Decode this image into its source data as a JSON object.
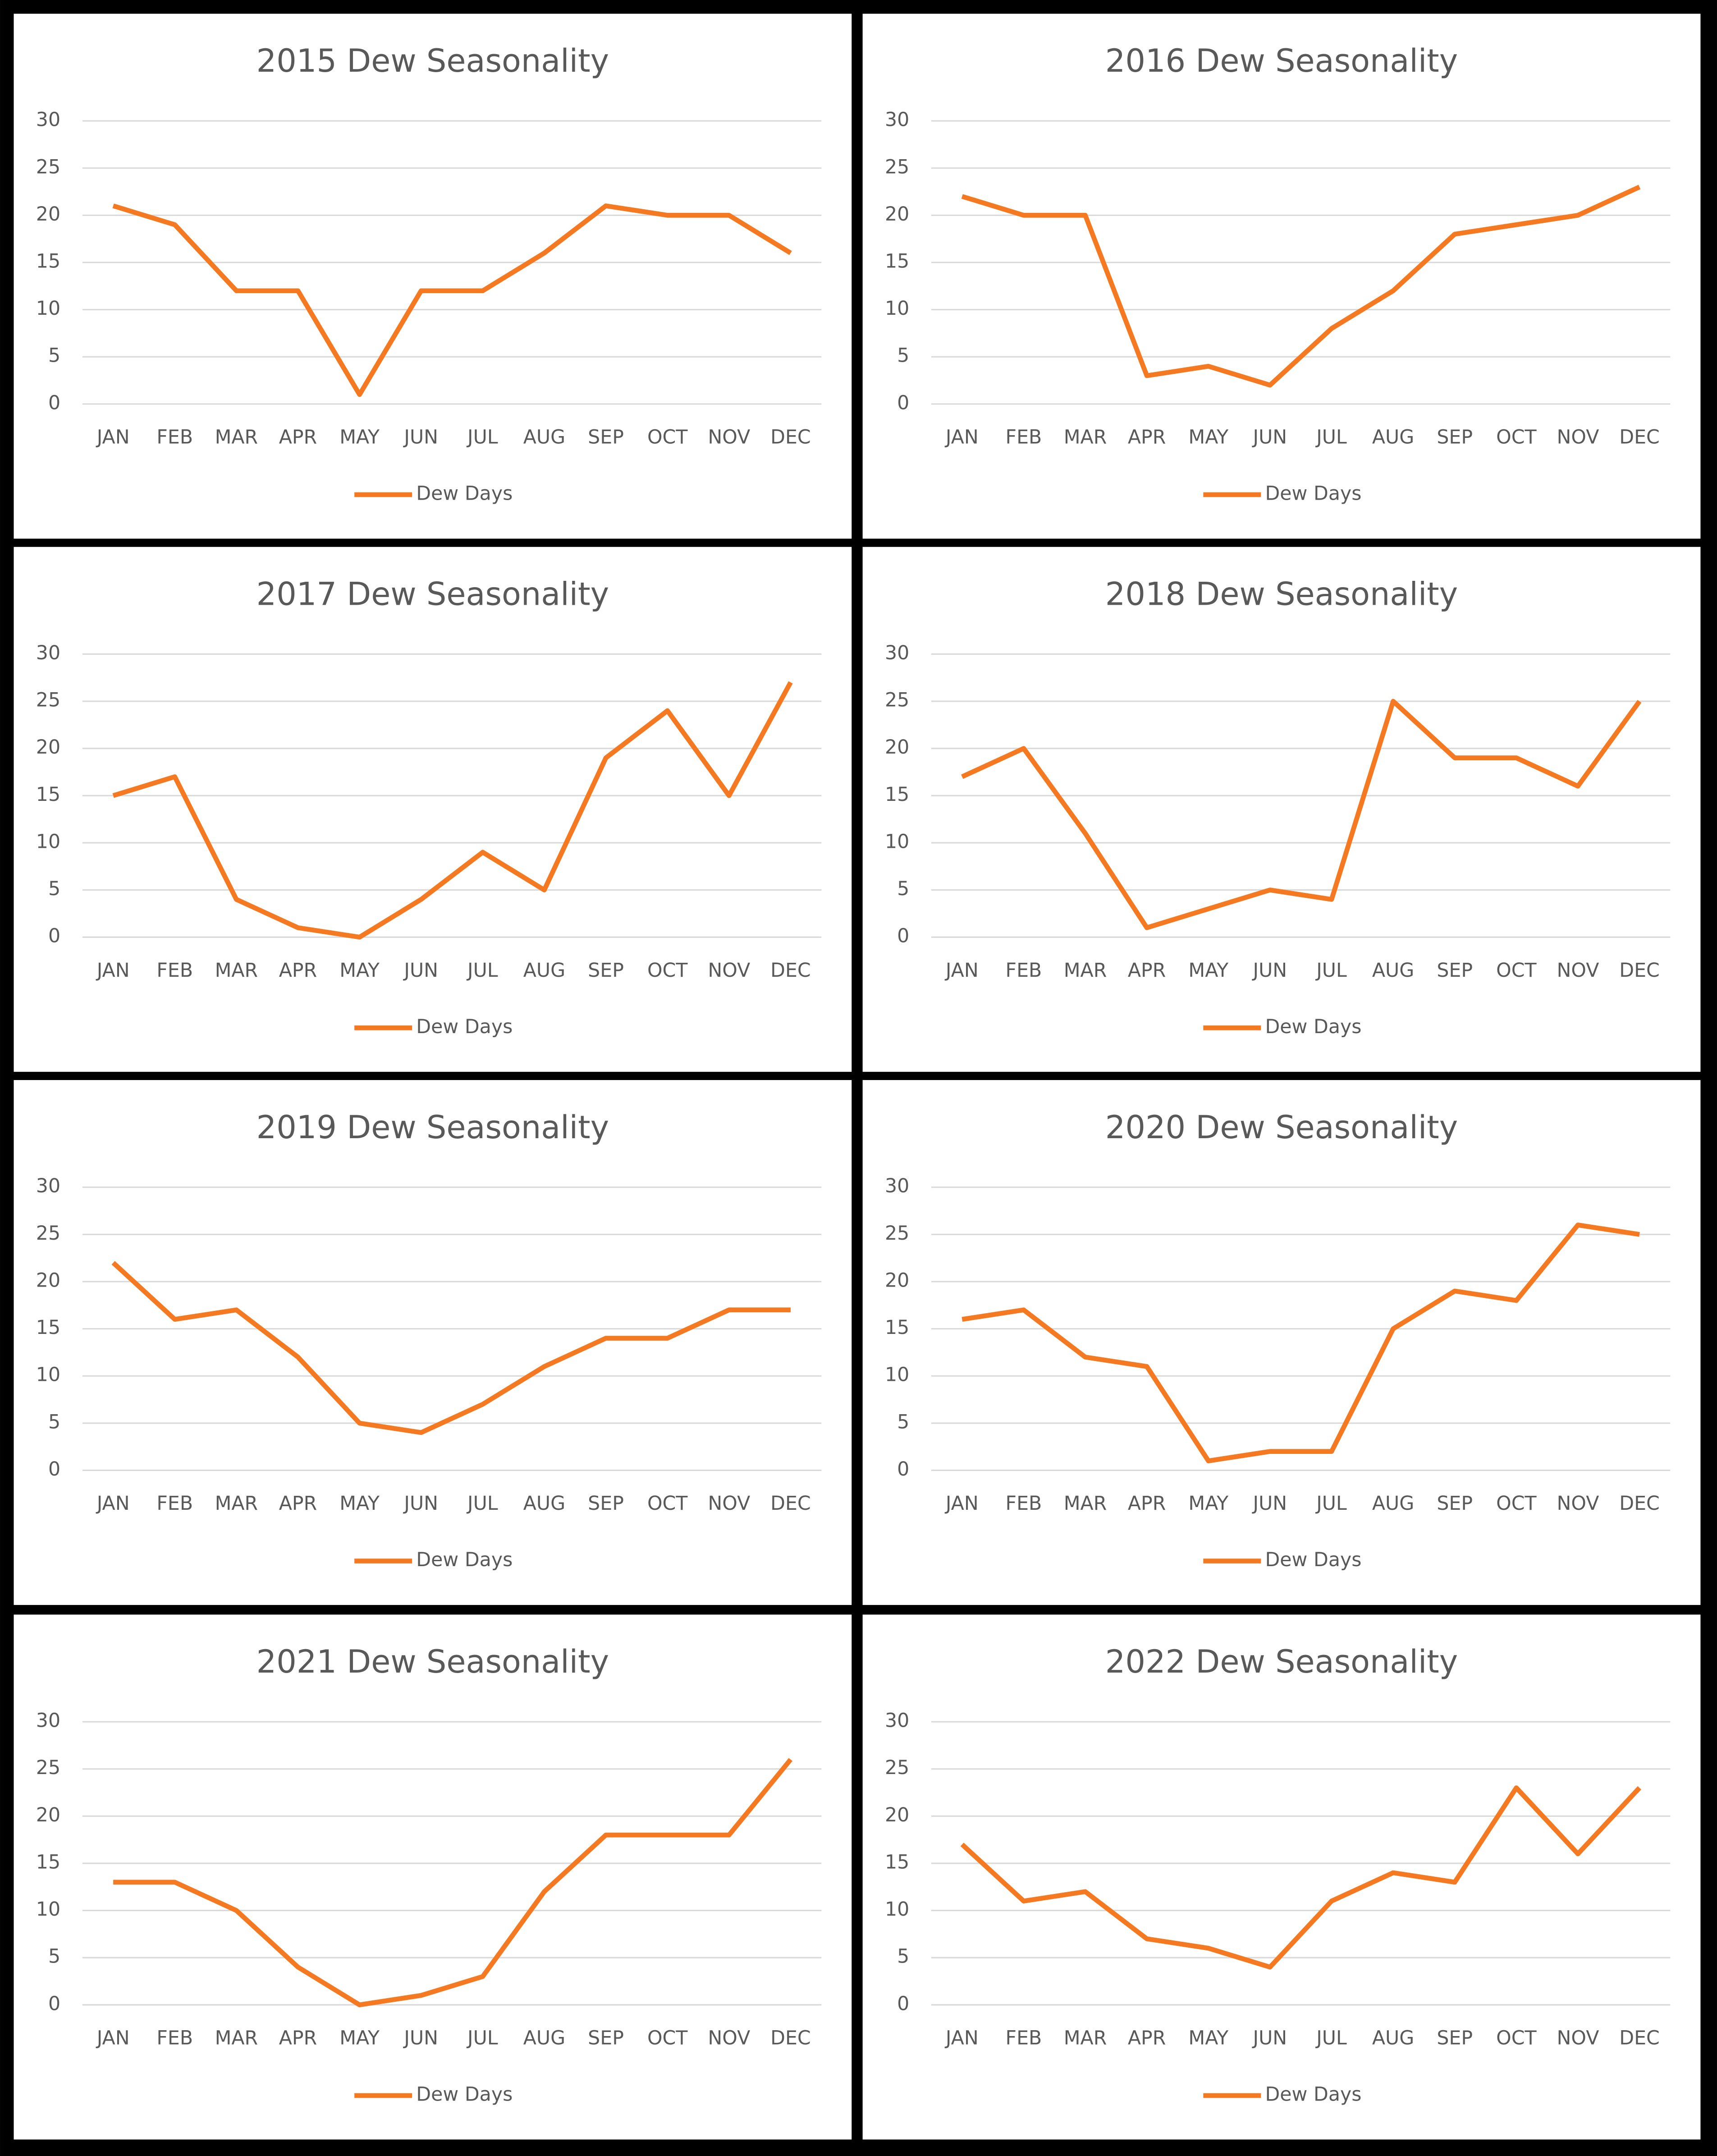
{
  "chart_data": [
    {
      "type": "line",
      "title": "2015 Dew Seasonality",
      "categories": [
        "JAN",
        "FEB",
        "MAR",
        "APR",
        "MAY",
        "JUN",
        "JUL",
        "AUG",
        "SEP",
        "OCT",
        "NOV",
        "DEC"
      ],
      "series": [
        {
          "name": "Dew Days",
          "color": "#f47920",
          "values": [
            21,
            19,
            12,
            12,
            1,
            12,
            12,
            16,
            21,
            20,
            20,
            16
          ]
        }
      ],
      "ylim": [
        0,
        30
      ],
      "yticks": [
        0,
        5,
        10,
        15,
        20,
        25,
        30
      ],
      "grid": true,
      "legend": "bottom"
    },
    {
      "type": "line",
      "title": "2016 Dew Seasonality",
      "categories": [
        "JAN",
        "FEB",
        "MAR",
        "APR",
        "MAY",
        "JUN",
        "JUL",
        "AUG",
        "SEP",
        "OCT",
        "NOV",
        "DEC"
      ],
      "series": [
        {
          "name": "Dew Days",
          "color": "#f47920",
          "values": [
            22,
            20,
            20,
            3,
            4,
            2,
            8,
            12,
            18,
            19,
            20,
            23
          ]
        }
      ],
      "ylim": [
        0,
        30
      ],
      "yticks": [
        0,
        5,
        10,
        15,
        20,
        25,
        30
      ],
      "grid": true,
      "legend": "bottom"
    },
    {
      "type": "line",
      "title": "2017 Dew Seasonality",
      "categories": [
        "JAN",
        "FEB",
        "MAR",
        "APR",
        "MAY",
        "JUN",
        "JUL",
        "AUG",
        "SEP",
        "OCT",
        "NOV",
        "DEC"
      ],
      "series": [
        {
          "name": "Dew Days",
          "color": "#f47920",
          "values": [
            15,
            17,
            4,
            1,
            0,
            4,
            9,
            5,
            19,
            24,
            15,
            27
          ]
        }
      ],
      "ylim": [
        0,
        30
      ],
      "yticks": [
        0,
        5,
        10,
        15,
        20,
        25,
        30
      ],
      "grid": true,
      "legend": "bottom"
    },
    {
      "type": "line",
      "title": "2018 Dew Seasonality",
      "categories": [
        "JAN",
        "FEB",
        "MAR",
        "APR",
        "MAY",
        "JUN",
        "JUL",
        "AUG",
        "SEP",
        "OCT",
        "NOV",
        "DEC"
      ],
      "series": [
        {
          "name": "Dew Days",
          "color": "#f47920",
          "values": [
            17,
            20,
            11,
            1,
            3,
            5,
            4,
            25,
            19,
            19,
            16,
            25
          ]
        }
      ],
      "ylim": [
        0,
        30
      ],
      "yticks": [
        0,
        5,
        10,
        15,
        20,
        25,
        30
      ],
      "grid": true,
      "legend": "bottom"
    },
    {
      "type": "line",
      "title": "2019 Dew Seasonality",
      "categories": [
        "JAN",
        "FEB",
        "MAR",
        "APR",
        "MAY",
        "JUN",
        "JUL",
        "AUG",
        "SEP",
        "OCT",
        "NOV",
        "DEC"
      ],
      "series": [
        {
          "name": "Dew Days",
          "color": "#f47920",
          "values": [
            22,
            16,
            17,
            12,
            5,
            4,
            7,
            11,
            14,
            14,
            17,
            17
          ]
        }
      ],
      "ylim": [
        0,
        30
      ],
      "yticks": [
        0,
        5,
        10,
        15,
        20,
        25,
        30
      ],
      "grid": true,
      "legend": "bottom"
    },
    {
      "type": "line",
      "title": "2020 Dew Seasonality",
      "categories": [
        "JAN",
        "FEB",
        "MAR",
        "APR",
        "MAY",
        "JUN",
        "JUL",
        "AUG",
        "SEP",
        "OCT",
        "NOV",
        "DEC"
      ],
      "series": [
        {
          "name": "Dew Days",
          "color": "#f47920",
          "values": [
            16,
            17,
            12,
            11,
            1,
            2,
            2,
            15,
            19,
            18,
            26,
            25
          ]
        }
      ],
      "ylim": [
        0,
        30
      ],
      "yticks": [
        0,
        5,
        10,
        15,
        20,
        25,
        30
      ],
      "grid": true,
      "legend": "bottom"
    },
    {
      "type": "line",
      "title": "2021 Dew Seasonality",
      "categories": [
        "JAN",
        "FEB",
        "MAR",
        "APR",
        "MAY",
        "JUN",
        "JUL",
        "AUG",
        "SEP",
        "OCT",
        "NOV",
        "DEC"
      ],
      "series": [
        {
          "name": "Dew Days",
          "color": "#f47920",
          "values": [
            13,
            13,
            10,
            4,
            0,
            1,
            3,
            12,
            18,
            18,
            18,
            26
          ]
        }
      ],
      "ylim": [
        0,
        30
      ],
      "yticks": [
        0,
        5,
        10,
        15,
        20,
        25,
        30
      ],
      "grid": true,
      "legend": "bottom"
    },
    {
      "type": "line",
      "title": "2022 Dew Seasonality",
      "categories": [
        "JAN",
        "FEB",
        "MAR",
        "APR",
        "MAY",
        "JUN",
        "JUL",
        "AUG",
        "SEP",
        "OCT",
        "NOV",
        "DEC"
      ],
      "series": [
        {
          "name": "Dew Days",
          "color": "#f47920",
          "values": [
            17,
            11,
            12,
            7,
            6,
            4,
            11,
            14,
            13,
            23,
            16,
            23
          ]
        }
      ],
      "ylim": [
        0,
        30
      ],
      "yticks": [
        0,
        5,
        10,
        15,
        20,
        25,
        30
      ],
      "grid": true,
      "legend": "bottom"
    }
  ]
}
